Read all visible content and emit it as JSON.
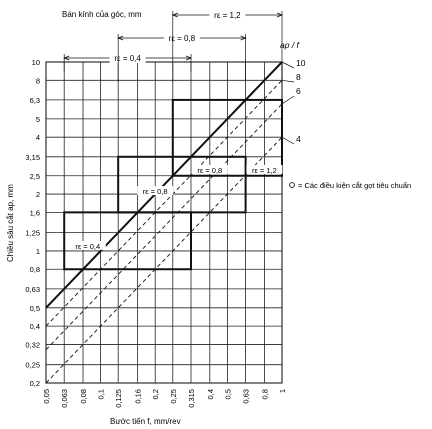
{
  "chart_data": {
    "type": "line",
    "title": "Bán kính của góc, mm",
    "xlabel": "Bước tiến f, mm/rev",
    "ylabel": "Chiều sâu cắt ap, mm",
    "x_scale": "log",
    "y_scale": "log",
    "xlim": [
      0.05,
      1.0
    ],
    "ylim": [
      0.2,
      10
    ],
    "x_ticks": [
      "0,05",
      "0,063",
      "0,08",
      "0,1",
      "0,125",
      "0,16",
      "0,2",
      "0,25",
      "0,315",
      "0,4",
      "0,5",
      "0,63",
      "0,8",
      "1"
    ],
    "x_tick_values": [
      0.05,
      0.063,
      0.08,
      0.1,
      0.125,
      0.16,
      0.2,
      0.25,
      0.315,
      0.4,
      0.5,
      0.63,
      0.8,
      1.0
    ],
    "y_ticks": [
      "10",
      "8",
      "6,3",
      "5",
      "4",
      "3,15",
      "2,5",
      "2",
      "1,6",
      "1,25",
      "1",
      "0,8",
      "0,63",
      "0,5",
      "0,4",
      "0,32",
      "0,25",
      "0,2"
    ],
    "y_tick_values": [
      10,
      8,
      6.3,
      5,
      4,
      3.15,
      2.5,
      2,
      1.6,
      1.25,
      1,
      0.8,
      0.63,
      0.5,
      0.4,
      0.32,
      0.25,
      0.2
    ],
    "ratio_title": "ap / f",
    "ratio_lines": [
      {
        "label": "10",
        "ratio": 10,
        "style": "solid"
      },
      {
        "label": "8",
        "ratio": 8,
        "style": "dashed"
      },
      {
        "label": "6",
        "ratio": 6,
        "style": "dashed"
      },
      {
        "label": "4",
        "ratio": 4,
        "style": "dashed"
      }
    ],
    "regions": [
      {
        "label": "rε = 0,4",
        "f_min": 0.063,
        "f_max": 0.315,
        "ap_min": 0.8,
        "ap_max": 1.6
      },
      {
        "label": "rε = 0,8",
        "f_min": 0.125,
        "f_max": 0.63,
        "ap_min": 1.6,
        "ap_max": 3.15
      },
      {
        "label": "rε = 1,2",
        "f_min": 0.25,
        "f_max": 1.0,
        "ap_min": 2.5,
        "ap_max": 6.3
      }
    ],
    "header_brackets": [
      {
        "label": "rε = 0,4",
        "f_min": 0.063,
        "f_max": 0.315
      },
      {
        "label": "rε = 0,8",
        "f_min": 0.125,
        "f_max": 0.63
      },
      {
        "label": "rε = 1,2",
        "f_min": 0.25,
        "f_max": 1.0
      }
    ],
    "inner_labels": [
      "rε = 0,4",
      "rε = 0,8",
      "rε = 0,8",
      "rε = 1,2"
    ],
    "legend_note": "= Các điều kiện cắt gọt tiêu chuẩn",
    "grid": true
  }
}
